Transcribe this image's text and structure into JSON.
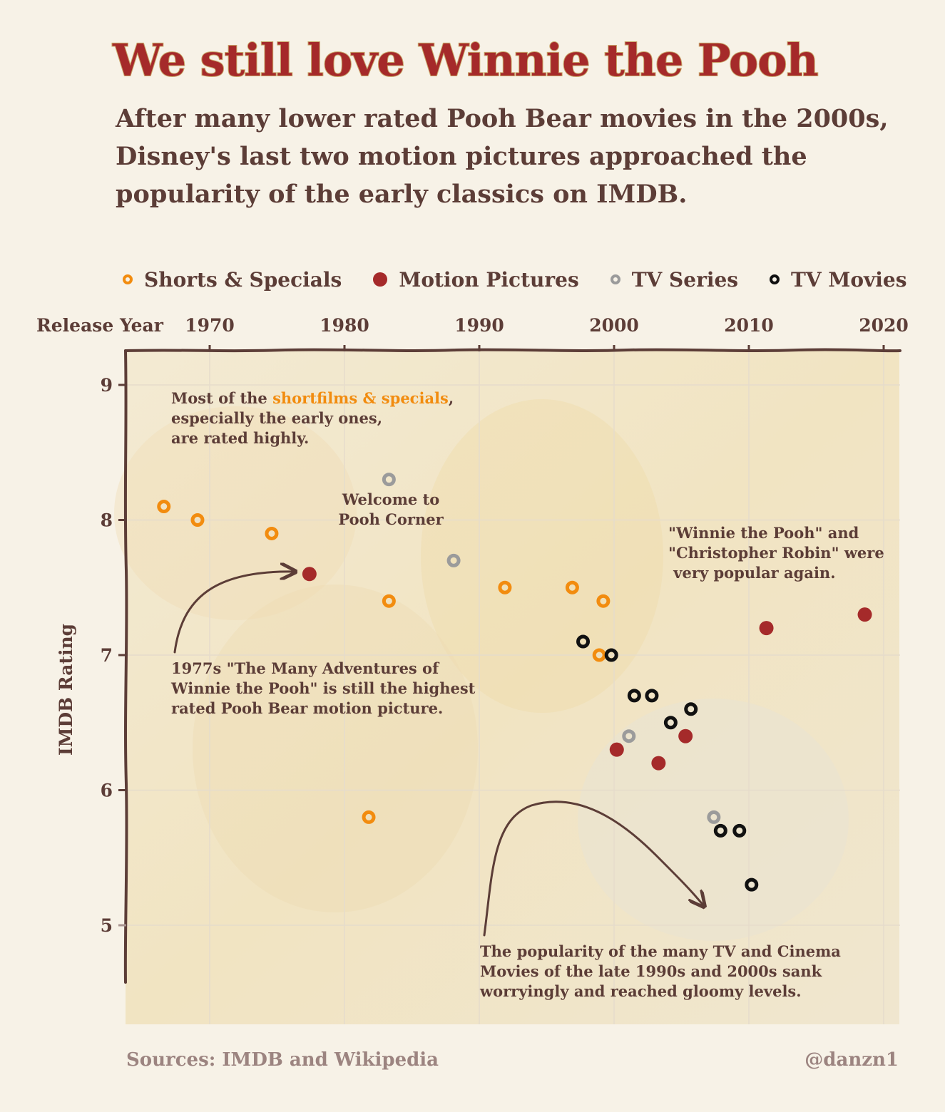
{
  "title": "We still love Winnie the Pooh",
  "subtitle": "After many lower rated Pooh Bear movies in the 2000s, Disney's last two motion pictures approached the popularity of the early classics on IMDB.",
  "legend": [
    {
      "label": "Shorts & Specials",
      "color": "#f28c0f",
      "style": "ring"
    },
    {
      "label": "Motion Pictures",
      "color": "#a52a2a",
      "style": "filled"
    },
    {
      "label": "TV Series",
      "color": "#9b9b9b",
      "style": "ring"
    },
    {
      "label": "TV Movies",
      "color": "#111111",
      "style": "ring"
    }
  ],
  "annotations": {
    "shorts_line1_pre": "Most of the ",
    "shorts_line1_highlight": "shortfilms & specials",
    "shorts_line1_post": ",",
    "shorts_line2": "especially the early ones,",
    "shorts_line3": "are rated highly.",
    "pooh_corner_1": "Welcome to",
    "pooh_corner_2": "Pooh Corner",
    "popular_1": "\"Winnie the Pooh\" and",
    "popular_2": "\"Christopher Robin\" were",
    "popular_3": " very popular again.",
    "many_adv_1": "1977s \"The Many Adventures of",
    "many_adv_2": "Winnie the Pooh\" is still the highest",
    "many_adv_3": "rated Pooh Bear motion picture.",
    "gloomy_1": "The popularity of the many TV and Cinema",
    "gloomy_2": "Movies of the late 1990s and 2000s sank",
    "gloomy_3": "worryingly and reached gloomy levels.",
    "highlight_color": "#f28c0f"
  },
  "footer": {
    "sources": "Sources: IMDB and Wikipedia",
    "handle": "@danzn1"
  },
  "chart_data": {
    "type": "scatter",
    "xlabel": "Release Year",
    "ylabel": "IMDB Rating",
    "x_axis_position": "top",
    "xlim": [
      1963,
      2021
    ],
    "ylim": [
      4.5,
      9.3
    ],
    "x_ticks": [
      1970,
      1980,
      1990,
      2000,
      2010,
      2020
    ],
    "y_ticks": [
      5,
      6,
      7,
      8,
      9
    ],
    "grid": true,
    "legend_position": "top",
    "series": [
      {
        "name": "Shorts & Specials",
        "color": "#f28c0f",
        "points": [
          [
            1966.6,
            8.1
          ],
          [
            1969.1,
            8.0
          ],
          [
            1974.6,
            7.9
          ],
          [
            1983.3,
            7.4
          ],
          [
            1981.8,
            5.8
          ],
          [
            1991.9,
            7.5
          ],
          [
            1996.9,
            7.5
          ],
          [
            1999.2,
            7.4
          ],
          [
            1998.9,
            7.0
          ]
        ]
      },
      {
        "name": "Motion Pictures",
        "color": "#a52a2a",
        "points": [
          [
            1977.4,
            7.6
          ],
          [
            2000.2,
            6.3
          ],
          [
            2003.3,
            6.2
          ],
          [
            2005.3,
            6.4
          ],
          [
            2011.3,
            7.2
          ],
          [
            2018.6,
            7.3
          ]
        ]
      },
      {
        "name": "TV Series",
        "color": "#9b9b9b",
        "points": [
          [
            1983.3,
            8.3
          ],
          [
            1988.1,
            7.7
          ],
          [
            2001.1,
            6.4
          ],
          [
            2007.4,
            5.8
          ]
        ]
      },
      {
        "name": "TV Movies",
        "color": "#111111",
        "points": [
          [
            1997.7,
            7.1
          ],
          [
            1999.8,
            7.0
          ],
          [
            2001.5,
            6.7
          ],
          [
            2002.8,
            6.7
          ],
          [
            2004.2,
            6.5
          ],
          [
            2005.7,
            6.6
          ],
          [
            2007.9,
            5.7
          ],
          [
            2009.3,
            5.7
          ],
          [
            2010.2,
            5.3
          ]
        ]
      }
    ]
  }
}
